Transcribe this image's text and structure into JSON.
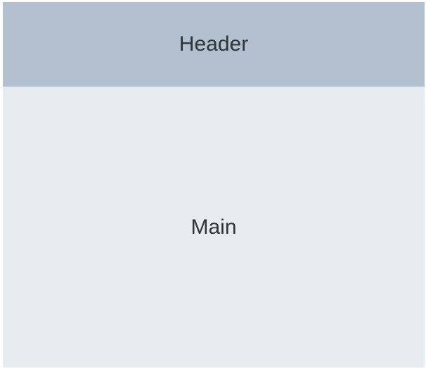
{
  "layout": {
    "header": {
      "label": "Header",
      "background": "#b3c0cf"
    },
    "main": {
      "label": "Main",
      "background": "#e7ecf0"
    },
    "text_color": "#2f3438"
  }
}
